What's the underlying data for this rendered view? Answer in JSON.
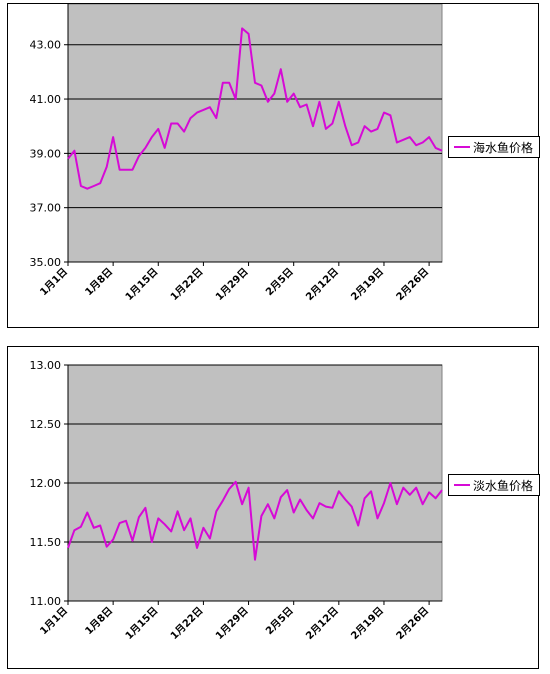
{
  "chart_data": [
    {
      "type": "line",
      "x_tick_labels": [
        "1月1日",
        "1月8日",
        "1月15日",
        "1月22日",
        "1月29日",
        "2月5日",
        "2月12日",
        "2月19日",
        "2月26日"
      ],
      "y_tick_labels": [
        "35.00",
        "37.00",
        "39.00",
        "41.00",
        "43.00"
      ],
      "ylim": [
        35,
        44.5
      ],
      "grid": true,
      "legend_position": "right",
      "series": [
        {
          "name": "海水鱼价格",
          "color": "#d60ad6",
          "values": [
            38.8,
            39.1,
            37.8,
            37.7,
            37.8,
            37.9,
            38.5,
            39.6,
            38.4,
            38.4,
            38.4,
            38.9,
            39.2,
            39.6,
            39.9,
            39.2,
            40.1,
            40.1,
            39.8,
            40.3,
            40.5,
            40.6,
            40.7,
            40.3,
            41.6,
            41.6,
            41.0,
            43.6,
            43.4,
            41.6,
            41.5,
            40.9,
            41.2,
            42.1,
            40.9,
            41.2,
            40.7,
            40.8,
            40.0,
            40.9,
            39.9,
            40.1,
            40.9,
            40.0,
            39.3,
            39.4,
            40.0,
            39.8,
            39.9,
            40.5,
            40.4,
            39.4,
            39.5,
            39.6,
            39.3,
            39.4,
            39.6,
            39.2,
            39.1
          ]
        }
      ]
    },
    {
      "type": "line",
      "x_tick_labels": [
        "1月1日",
        "1月8日",
        "1月15日",
        "1月22日",
        "1月29日",
        "2月5日",
        "2月12日",
        "2月19日",
        "2月26日"
      ],
      "y_tick_labels": [
        "11.00",
        "11.50",
        "12.00",
        "12.50",
        "13.00"
      ],
      "ylim": [
        11,
        13
      ],
      "grid": true,
      "legend_position": "right",
      "series": [
        {
          "name": "淡水鱼价格",
          "color": "#d60ad6",
          "values": [
            11.45,
            11.6,
            11.63,
            11.75,
            11.62,
            11.64,
            11.46,
            11.52,
            11.66,
            11.68,
            11.51,
            11.71,
            11.79,
            11.5,
            11.7,
            11.65,
            11.59,
            11.76,
            11.6,
            11.7,
            11.45,
            11.62,
            11.53,
            11.76,
            11.85,
            11.95,
            12.01,
            11.82,
            11.96,
            11.35,
            11.72,
            11.82,
            11.7,
            11.88,
            11.94,
            11.75,
            11.86,
            11.77,
            11.7,
            11.83,
            11.8,
            11.79,
            11.93,
            11.86,
            11.8,
            11.64,
            11.87,
            11.93,
            11.7,
            11.83,
            12.0,
            11.82,
            11.96,
            11.9,
            11.96,
            11.82,
            11.92,
            11.87,
            11.94
          ]
        }
      ]
    }
  ]
}
